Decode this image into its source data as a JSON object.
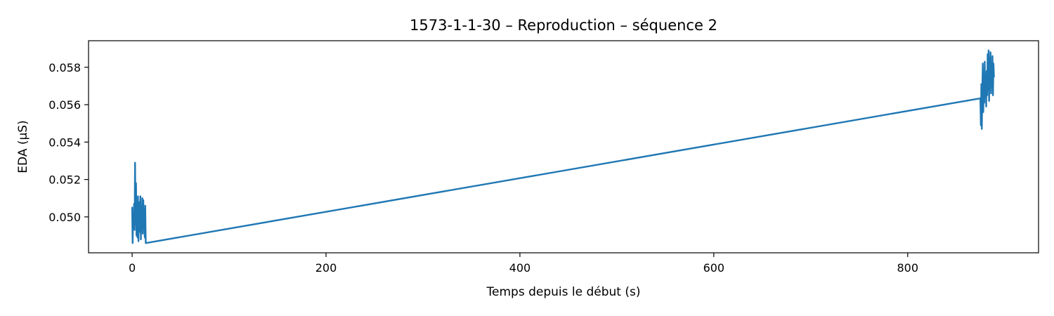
{
  "chart_data": {
    "type": "line",
    "title": "1573-1-1-30 – Reproduction – séquence 2",
    "xlabel": "Temps depuis le début (s)",
    "ylabel": "EDA (µS)",
    "xlim": [
      -45,
      935
    ],
    "ylim": [
      0.04808,
      0.05942
    ],
    "xticks": [
      0,
      200,
      400,
      600,
      800
    ],
    "yticks": [
      0.05,
      0.052,
      0.054,
      0.056,
      0.058
    ],
    "ytick_labels": [
      "0.050",
      "0.052",
      "0.054",
      "0.056",
      "0.058"
    ],
    "grid": false,
    "legend": "none",
    "series": [
      {
        "color": "#1f77b4",
        "x": [
          0.0,
          0.5,
          1.0,
          1.5,
          2.0,
          2.5,
          3.0,
          3.5,
          4.0,
          4.5,
          5.0,
          5.5,
          6.0,
          6.5,
          7.0,
          7.5,
          8.0,
          8.5,
          9.0,
          9.5,
          10.0,
          10.5,
          11.0,
          11.5,
          12.0,
          12.5,
          13.0,
          13.5,
          14.0,
          875.0,
          875.5,
          876.0,
          876.5,
          877.0,
          877.5,
          878.0,
          878.5,
          879.0,
          879.5,
          880.0,
          880.5,
          881.0,
          881.5,
          882.0,
          882.5,
          883.0,
          883.5,
          884.0,
          884.5,
          885.0,
          885.5,
          886.0,
          886.5,
          887.0,
          887.5,
          888.0,
          888.5,
          889.0
        ],
        "y": [
          0.0505,
          0.0486,
          0.0502,
          0.0495,
          0.0507,
          0.0493,
          0.0529,
          0.0496,
          0.0518,
          0.049,
          0.0503,
          0.0489,
          0.0511,
          0.0487,
          0.05,
          0.0508,
          0.0492,
          0.0511,
          0.0488,
          0.0504,
          0.0494,
          0.051,
          0.0491,
          0.0509,
          0.0496,
          0.0503,
          0.0489,
          0.0506,
          0.0486,
          0.05634,
          0.0549,
          0.0571,
          0.0547,
          0.0568,
          0.0582,
          0.0556,
          0.0574,
          0.0561,
          0.0583,
          0.0566,
          0.0575,
          0.0559,
          0.0578,
          0.0565,
          0.0587,
          0.0568,
          0.0589,
          0.0562,
          0.0585,
          0.057,
          0.0588,
          0.0566,
          0.058,
          0.0571,
          0.0586,
          0.0565,
          0.0582,
          0.0575
        ]
      }
    ]
  }
}
